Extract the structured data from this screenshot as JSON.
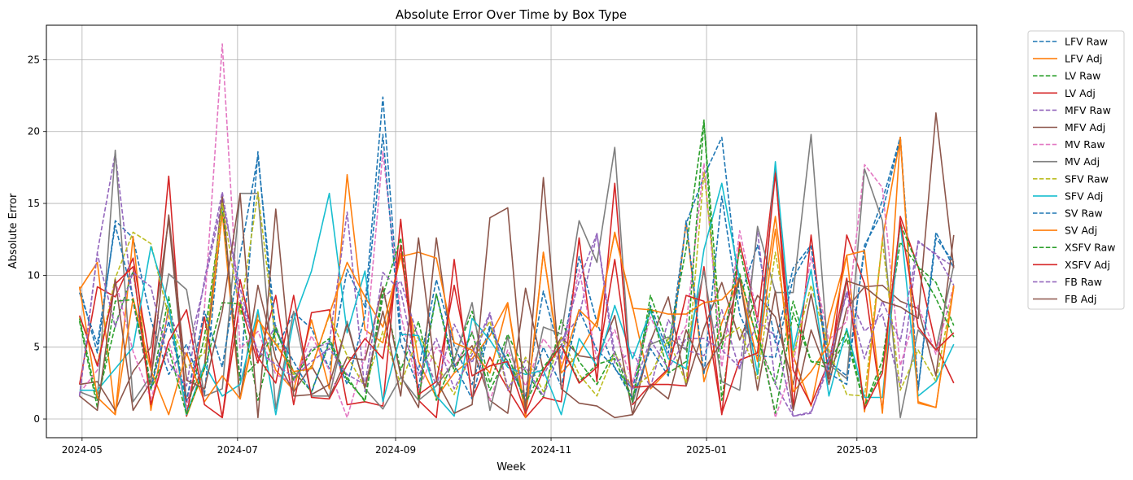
{
  "chart_data": {
    "type": "line",
    "title": "Absolute Error Over Time by Box Type",
    "xlabel": "Week",
    "ylabel": "Absolute Error",
    "x_is_date": true,
    "xlim": [
      "2024-04-17",
      "2025-04-17"
    ],
    "ylim": [
      -1.3,
      27.4
    ],
    "x_ticks": [
      {
        "value": "2024-05-01",
        "label": "2024-05"
      },
      {
        "value": "2024-07-01",
        "label": "2024-07"
      },
      {
        "value": "2024-09-01",
        "label": "2024-09"
      },
      {
        "value": "2024-11-01",
        "label": "2024-11"
      },
      {
        "value": "2025-01-01",
        "label": "2025-01"
      },
      {
        "value": "2025-03-01",
        "label": "2025-03"
      }
    ],
    "y_ticks": [
      {
        "value": 0,
        "label": "0"
      },
      {
        "value": 5,
        "label": "5"
      },
      {
        "value": 10,
        "label": "10"
      },
      {
        "value": 15,
        "label": "15"
      },
      {
        "value": 20,
        "label": "20"
      },
      {
        "value": 25,
        "label": "25"
      }
    ],
    "grid": true,
    "legend_position": "outside-right",
    "x": [
      "2024-04-30",
      "2024-05-07",
      "2024-05-14",
      "2024-05-21",
      "2024-05-28",
      "2024-06-04",
      "2024-06-11",
      "2024-06-18",
      "2024-06-25",
      "2024-07-02",
      "2024-07-09",
      "2024-07-16",
      "2024-07-23",
      "2024-07-30",
      "2024-08-06",
      "2024-08-13",
      "2024-08-20",
      "2024-08-27",
      "2024-09-03",
      "2024-09-10",
      "2024-09-17",
      "2024-09-24",
      "2024-10-01",
      "2024-10-08",
      "2024-10-15",
      "2024-10-22",
      "2024-10-29",
      "2024-11-05",
      "2024-11-12",
      "2024-11-19",
      "2024-11-26",
      "2024-12-03",
      "2024-12-10",
      "2024-12-17",
      "2024-12-24",
      "2024-12-31",
      "2025-01-07",
      "2025-01-14",
      "2025-01-21",
      "2025-01-28",
      "2025-02-04",
      "2025-02-11",
      "2025-02-18",
      "2025-02-25",
      "2025-03-04",
      "2025-03-11",
      "2025-03-18",
      "2025-03-25",
      "2025-04-01",
      "2025-04-08"
    ],
    "series": [
      {
        "name": "LFV Raw",
        "color": "#1f77b4",
        "dash": true,
        "values": [
          9.2,
          4.6,
          13.8,
          12.6,
          6.9,
          3.1,
          5.2,
          1.7,
          14.5,
          2.8,
          18.6,
          4.8,
          7.4,
          6.3,
          3.5,
          10.4,
          7.8,
          22.4,
          6.1,
          3.4,
          9.7,
          5.1,
          2.4,
          6.5,
          3.8,
          1.6,
          8.9,
          4.2,
          11.3,
          6.7,
          3.5,
          2.1,
          7.9,
          4.6,
          13.6,
          16.9,
          19.6,
          8.4,
          12.1,
          5.3,
          10.5,
          12.1,
          4.0,
          3.0,
          11.8,
          15.2,
          19.6,
          2.1,
          13.0,
          10.5
        ]
      },
      {
        "name": "LFV Adj",
        "color": "#ff7f0e",
        "dash": false,
        "values": [
          9.0,
          10.9,
          0.3,
          12.7,
          0.6,
          7.8,
          0.2,
          3.5,
          14.3,
          1.4,
          7.3,
          3.4,
          2.0,
          6.9,
          2.1,
          17.0,
          6.2,
          5.3,
          11.5,
          4.0,
          1.5,
          3.2,
          4.2,
          5.8,
          8.1,
          0.3,
          11.6,
          3.2,
          4.6,
          6.8,
          12.9,
          7.8,
          2.1,
          3.4,
          13.7,
          2.6,
          6.7,
          9.9,
          5.4,
          14.1,
          4.4,
          0.9,
          7.0,
          11.4,
          0.5,
          12.5,
          19.6,
          1.2,
          0.8,
          9.2
        ]
      },
      {
        "name": "LV Raw",
        "color": "#2ca02c",
        "dash": true,
        "values": [
          7.0,
          1.3,
          6.5,
          10.3,
          2.1,
          8.5,
          0.4,
          5.7,
          14.8,
          2.7,
          4.0,
          6.2,
          3.3,
          1.9,
          5.3,
          2.7,
          1.3,
          9.1,
          3.4,
          6.8,
          1.3,
          4.2,
          7.5,
          2.5,
          5.9,
          3.3,
          1.5,
          6.9,
          4.0,
          2.4,
          4.7,
          1.3,
          8.6,
          5.1,
          11.9,
          20.8,
          1.3,
          10.1,
          5.4,
          2.4,
          8.2,
          4.0,
          3.5,
          5.6,
          0.9,
          4.1,
          12.3,
          10.6,
          9.5,
          6.5
        ]
      },
      {
        "name": "LV Adj",
        "color": "#d62728",
        "dash": false,
        "values": [
          2.4,
          9.2,
          8.5,
          11.2,
          3.6,
          16.9,
          0.2,
          7.1,
          0.1,
          8.1,
          3.9,
          8.6,
          1.0,
          7.4,
          7.6,
          1.0,
          1.2,
          0.9,
          13.9,
          1.3,
          0.1,
          11.1,
          1.4,
          4.3,
          2.1,
          0.1,
          1.5,
          1.2,
          12.6,
          2.6,
          16.4,
          1.0,
          2.4,
          2.4,
          2.3,
          10.6,
          0.3,
          12.3,
          6.9,
          17.5,
          0.8,
          12.8,
          2.8,
          12.8,
          9.4,
          0.6,
          14.1,
          10.6,
          5.1,
          2.5
        ]
      },
      {
        "name": "MFV Raw",
        "color": "#9467bd",
        "dash": true,
        "values": [
          1.6,
          11.6,
          18.5,
          8.1,
          2.0,
          7.5,
          4.3,
          9.4,
          15.2,
          9.1,
          4.3,
          6.5,
          2.8,
          4.9,
          5.3,
          14.4,
          1.9,
          8.4,
          9.6,
          5.6,
          2.3,
          6.6,
          3.9,
          7.3,
          2.0,
          4.1,
          3.0,
          5.5,
          7.1,
          12.9,
          3.9,
          4.7,
          2.2,
          6.9,
          4.8,
          4.4,
          7.6,
          3.4,
          13.1,
          2.4,
          0.2,
          0.5,
          3.7,
          8.9,
          6.1,
          7.3,
          2.2,
          12.4,
          11.4,
          10.6
        ]
      },
      {
        "name": "MFV Adj",
        "color": "#8c564b",
        "dash": false,
        "values": [
          2.4,
          2.6,
          0.6,
          3.3,
          5.0,
          13.9,
          1.2,
          3.7,
          15.6,
          1.4,
          9.3,
          4.2,
          1.9,
          3.7,
          1.5,
          4.3,
          4.1,
          9.2,
          3.0,
          0.8,
          12.6,
          3.7,
          5.1,
          1.3,
          0.4,
          9.1,
          3.3,
          5.7,
          4.4,
          4.2,
          7.2,
          0.3,
          5.4,
          8.5,
          2.3,
          6.3,
          9.5,
          5.5,
          8.6,
          7.1,
          2.4,
          8.7,
          2.4,
          7.7,
          9.2,
          9.3,
          8.2,
          7.7,
          3.0,
          12.8
        ]
      },
      {
        "name": "MV Raw",
        "color": "#e377c2",
        "dash": true,
        "values": [
          1.8,
          3.4,
          9.7,
          4.7,
          1.4,
          5.4,
          0.8,
          7.7,
          26.1,
          4.9,
          6.1,
          3.1,
          2.5,
          5.8,
          3.4,
          0.1,
          4.4,
          18.6,
          7.3,
          2.0,
          5.0,
          3.5,
          6.1,
          1.3,
          4.8,
          2.3,
          5.6,
          3.9,
          10.4,
          4.1,
          6.2,
          2.5,
          7.1,
          4.4,
          6.5,
          17.8,
          3.6,
          13.1,
          7.1,
          0.1,
          3.8,
          11.3,
          5.5,
          6.8,
          17.7,
          16.1,
          3.7,
          7.9,
          4.5,
          9.3
        ]
      },
      {
        "name": "MV Adj",
        "color": "#7f7f7f",
        "dash": false,
        "values": [
          1.9,
          1.4,
          18.7,
          1.2,
          3.0,
          10.1,
          9.0,
          1.6,
          2.1,
          15.7,
          15.7,
          0.7,
          7.5,
          1.6,
          1.6,
          6.8,
          2.1,
          0.7,
          2.9,
          1.3,
          2.3,
          4.0,
          8.1,
          0.6,
          5.7,
          0.6,
          6.4,
          5.9,
          13.8,
          10.9,
          18.9,
          1.1,
          5.2,
          5.7,
          4.8,
          10.3,
          2.6,
          2.0,
          13.4,
          8.8,
          8.8,
          19.8,
          3.8,
          2.8,
          17.4,
          13.8,
          0.1,
          6.2,
          4.8,
          10.7
        ]
      },
      {
        "name": "SFV Raw",
        "color": "#bcbd22",
        "dash": true,
        "values": [
          7.1,
          3.8,
          9.8,
          13.0,
          12.2,
          7.1,
          3.6,
          4.6,
          15.0,
          7.3,
          15.8,
          5.4,
          3.1,
          3.6,
          7.2,
          4.4,
          2.2,
          6.1,
          2.4,
          5.8,
          3.8,
          1.7,
          4.8,
          6.8,
          2.1,
          4.3,
          1.9,
          5.7,
          3.1,
          1.6,
          4.6,
          2.1,
          3.1,
          5.6,
          2.5,
          17.2,
          5.5,
          6.4,
          2.8,
          11.6,
          4.4,
          9.3,
          4.8,
          1.7,
          1.6,
          12.4,
          2.0,
          4.8,
          2.6,
          9.2
        ]
      },
      {
        "name": "SFV Adj",
        "color": "#17becf",
        "dash": false,
        "values": [
          2.0,
          2.0,
          3.5,
          5.0,
          12.0,
          7.9,
          0.3,
          3.8,
          1.6,
          2.4,
          7.6,
          0.3,
          6.9,
          10.3,
          15.7,
          6.0,
          10.3,
          1.2,
          5.9,
          5.8,
          1.6,
          0.2,
          7.0,
          5.5,
          3.6,
          3.1,
          3.4,
          0.3,
          5.6,
          3.7,
          7.9,
          4.2,
          7.5,
          4.2,
          3.5,
          11.8,
          16.4,
          9.7,
          3.1,
          17.9,
          4.8,
          10.4,
          1.6,
          6.3,
          1.5,
          1.5,
          13.7,
          1.6,
          2.6,
          5.2
        ]
      },
      {
        "name": "SV Raw",
        "color": "#1f77b4",
        "dash": true,
        "values": [
          8.8,
          5.2,
          13.5,
          8.4,
          2.2,
          6.8,
          1.3,
          7.5,
          3.6,
          11.4,
          18.3,
          6.1,
          4.0,
          1.8,
          5.5,
          2.4,
          7.2,
          19.8,
          5.3,
          2.2,
          8.7,
          3.8,
          1.4,
          6.3,
          4.0,
          1.3,
          5.0,
          2.3,
          7.6,
          4.8,
          3.6,
          1.4,
          4.9,
          3.0,
          13.8,
          3.1,
          15.5,
          7.3,
          4.4,
          4.3,
          9.8,
          12.0,
          3.2,
          2.4,
          12.1,
          14.4,
          19.6,
          2.0,
          12.6,
          10.9
        ]
      },
      {
        "name": "SV Adj",
        "color": "#ff7f0e",
        "dash": false,
        "values": [
          9.2,
          1.5,
          0.3,
          8.4,
          3.4,
          0.3,
          4.6,
          1.2,
          3.0,
          1.4,
          6.9,
          5.2,
          3.3,
          3.5,
          7.3,
          10.9,
          8.5,
          6.4,
          11.3,
          11.6,
          11.2,
          5.3,
          4.8,
          3.2,
          8.0,
          0.1,
          11.6,
          3.5,
          7.6,
          6.4,
          13.0,
          7.7,
          7.6,
          7.3,
          7.3,
          8.1,
          8.3,
          9.6,
          4.0,
          13.2,
          1.9,
          3.3,
          5.2,
          11.4,
          11.7,
          0.4,
          19.6,
          1.1,
          0.8,
          9.3
        ]
      },
      {
        "name": "XSFV Raw",
        "color": "#2ca02c",
        "dash": true,
        "values": [
          6.8,
          0.8,
          8.2,
          8.3,
          2.1,
          4.9,
          0.3,
          3.5,
          8.1,
          8.0,
          1.3,
          6.4,
          2.7,
          4.7,
          5.6,
          2.9,
          1.2,
          8.6,
          12.6,
          1.4,
          8.7,
          3.3,
          6.0,
          2.0,
          4.5,
          1.1,
          3.6,
          5.2,
          2.6,
          3.8,
          4.2,
          1.2,
          7.8,
          3.2,
          4.0,
          20.7,
          4.9,
          11.8,
          6.2,
          0.4,
          7.4,
          4.0,
          3.9,
          6.1,
          0.9,
          3.5,
          13.6,
          10.6,
          8.4,
          5.7
        ]
      },
      {
        "name": "XSFV Adj",
        "color": "#d62728",
        "dash": false,
        "values": [
          7.2,
          3.7,
          9.4,
          10.6,
          1.0,
          5.4,
          7.6,
          1.0,
          0.1,
          9.7,
          4.3,
          2.5,
          8.6,
          1.5,
          1.4,
          3.8,
          5.6,
          4.2,
          12.1,
          1.7,
          2.6,
          9.3,
          3.0,
          3.7,
          4.0,
          0.4,
          3.4,
          5.1,
          2.5,
          3.6,
          11.1,
          2.2,
          2.3,
          3.5,
          8.6,
          8.2,
          0.4,
          4.1,
          4.6,
          17.1,
          3.4,
          1.0,
          4.0,
          9.8,
          0.7,
          3.2,
          13.8,
          6.4,
          4.8,
          6.0
        ]
      },
      {
        "name": "FB Raw",
        "color": "#9467bd",
        "dash": true,
        "values": [
          1.6,
          11.5,
          6.4,
          10.2,
          9.2,
          3.9,
          2.3,
          9.7,
          15.8,
          8.3,
          4.7,
          3.8,
          2.9,
          4.0,
          4.9,
          3.1,
          2.4,
          10.2,
          8.9,
          3.0,
          5.6,
          2.1,
          4.5,
          7.4,
          2.2,
          3.6,
          1.6,
          5.0,
          9.6,
          12.9,
          4.5,
          2.0,
          5.5,
          3.5,
          5.6,
          5.6,
          4.8,
          3.6,
          6.8,
          5.8,
          0.2,
          0.4,
          4.1,
          8.7,
          4.2,
          8.2,
          5.4,
          12.3,
          11.5,
          9.3
        ]
      },
      {
        "name": "FB Adj",
        "color": "#8c564b",
        "dash": false,
        "values": [
          1.6,
          0.6,
          9.7,
          0.6,
          2.6,
          14.2,
          2.7,
          2.1,
          7.5,
          15.7,
          0.1,
          14.6,
          1.6,
          1.7,
          2.4,
          6.6,
          2.2,
          7.5,
          1.6,
          12.6,
          2.7,
          0.4,
          1.0,
          14.0,
          14.7,
          0.6,
          16.8,
          2.1,
          1.1,
          0.9,
          0.1,
          0.3,
          2.4,
          1.4,
          6.2,
          3.4,
          5.4,
          9.8,
          2.0,
          8.9,
          0.6,
          6.2,
          2.9,
          9.6,
          9.2,
          8.2,
          7.8,
          7.0,
          21.3,
          10.5
        ]
      }
    ]
  }
}
